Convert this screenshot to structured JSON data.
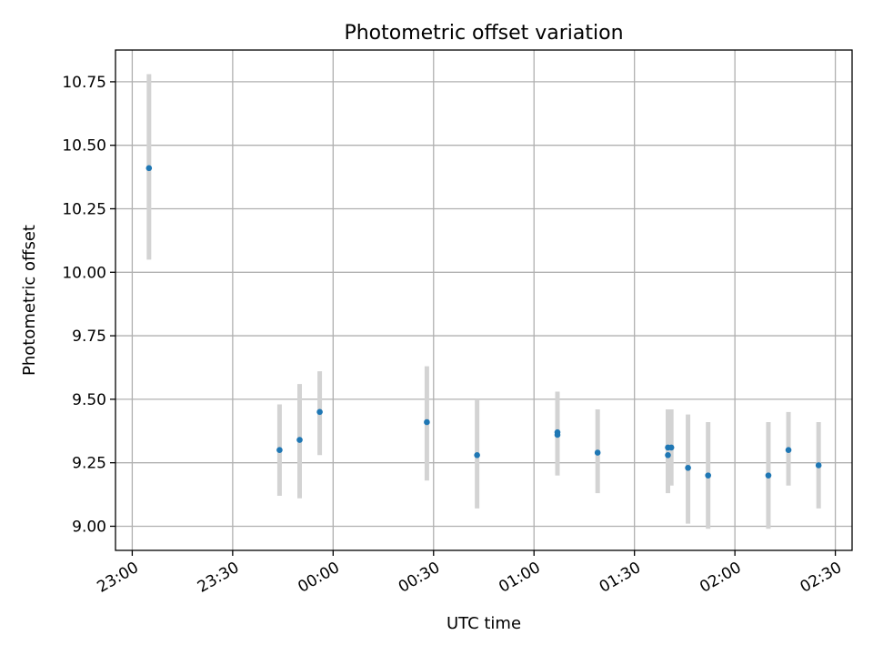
{
  "chart_data": {
    "type": "scatter",
    "title": "Photometric offset variation",
    "xlabel": "UTC time",
    "ylabel": "Photometric offset",
    "grid": true,
    "xlim": [
      "22:55",
      "02:35"
    ],
    "ylim": [
      8.905,
      10.875
    ],
    "x_ticks": [
      "23:00",
      "23:30",
      "00:00",
      "00:30",
      "01:00",
      "01:30",
      "02:00",
      "02:30"
    ],
    "y_ticks": [
      "9.00",
      "9.25",
      "9.50",
      "9.75",
      "10.00",
      "10.25",
      "10.50",
      "10.75"
    ],
    "marker_color": "#1f77b4",
    "errorbar_color": "#d3d3d3",
    "series": [
      {
        "points": [
          {
            "x": "23:05",
            "y": 10.41,
            "err_low": 10.05,
            "err_high": 10.78
          },
          {
            "x": "23:44",
            "y": 9.3,
            "err_low": 9.12,
            "err_high": 9.48
          },
          {
            "x": "23:50",
            "y": 9.34,
            "err_low": 9.11,
            "err_high": 9.56
          },
          {
            "x": "23:56",
            "y": 9.45,
            "err_low": 9.28,
            "err_high": 9.61
          },
          {
            "x": "00:28",
            "y": 9.41,
            "err_low": 9.18,
            "err_high": 9.63
          },
          {
            "x": "00:43",
            "y": 9.28,
            "err_low": 9.07,
            "err_high": 9.5
          },
          {
            "x": "01:07",
            "y": 9.37,
            "err_low": 9.2,
            "err_high": 9.53
          },
          {
            "x": "01:07",
            "y": 9.36,
            "err_low": 9.2,
            "err_high": 9.53
          },
          {
            "x": "01:19",
            "y": 9.29,
            "err_low": 9.13,
            "err_high": 9.46
          },
          {
            "x": "01:40",
            "y": 9.28,
            "err_low": 9.13,
            "err_high": 9.43
          },
          {
            "x": "01:40",
            "y": 9.31,
            "err_low": 9.16,
            "err_high": 9.46
          },
          {
            "x": "01:41",
            "y": 9.31,
            "err_low": 9.16,
            "err_high": 9.46
          },
          {
            "x": "01:46",
            "y": 9.23,
            "err_low": 9.01,
            "err_high": 9.44
          },
          {
            "x": "01:52",
            "y": 9.2,
            "err_low": 8.99,
            "err_high": 9.41
          },
          {
            "x": "02:10",
            "y": 9.2,
            "err_low": 8.99,
            "err_high": 9.41
          },
          {
            "x": "02:16",
            "y": 9.3,
            "err_low": 9.16,
            "err_high": 9.45
          },
          {
            "x": "02:25",
            "y": 9.24,
            "err_low": 9.07,
            "err_high": 9.41
          }
        ]
      }
    ]
  }
}
